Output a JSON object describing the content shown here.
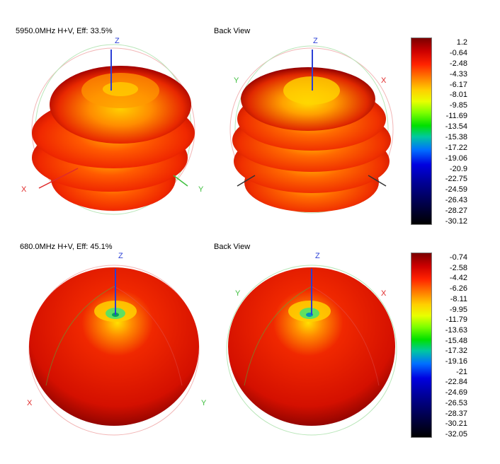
{
  "top": {
    "title_front": "5950.0MHz H+V, Eff: 33.5%",
    "title_back": "Back View",
    "axis": {
      "x": "X",
      "y": "Y",
      "z": "Z"
    },
    "colorbar_ticks": [
      "1.2",
      "-0.64",
      "-2.48",
      "-4.33",
      "-6.17",
      "-8.01",
      "-9.85",
      "-11.69",
      "-13.54",
      "-15.38",
      "-17.22",
      "-19.06",
      "-20.9",
      "-22.75",
      "-24.59",
      "-26.43",
      "-28.27",
      "-30.12"
    ]
  },
  "bottom": {
    "title_front": "680.0MHz H+V, Eff: 45.1%",
    "title_back": "Back View",
    "axis": {
      "x": "X",
      "y": "Y",
      "z": "Z"
    },
    "colorbar_ticks": [
      "-0.74",
      "-2.58",
      "-4.42",
      "-6.26",
      "-8.11",
      "-9.95",
      "-11.79",
      "-13.63",
      "-15.48",
      "-17.32",
      "-19.16",
      "-21",
      "-22.84",
      "-24.69",
      "-26.53",
      "-28.37",
      "-30.21",
      "-32.05"
    ]
  },
  "colors": {
    "scale": [
      "#7a0000",
      "#d40000",
      "#ff3300",
      "#ff8c00",
      "#ffd700",
      "#f5ff00",
      "#7fff00",
      "#00e000",
      "#00c080",
      "#0060ff",
      "#0000d0",
      "#00008a",
      "#000040",
      "#000000"
    ],
    "axis_x": "#e02a2a",
    "axis_y": "#3fbf3f",
    "axis_z": "#2a3fd6"
  }
}
